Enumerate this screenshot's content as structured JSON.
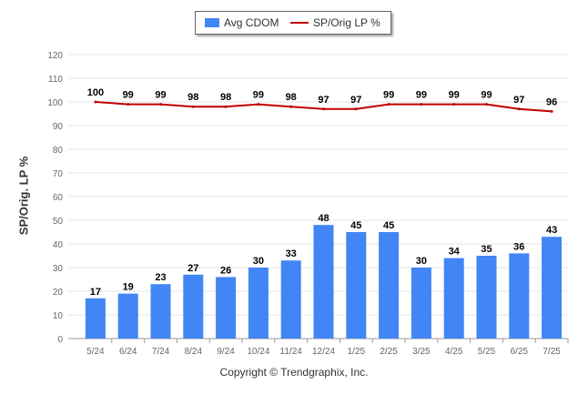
{
  "legend": {
    "bar_label": "Avg CDOM",
    "line_label": "SP/Orig LP %"
  },
  "footer": "Copyright © Trendgraphix, Inc.",
  "colors": {
    "bar": "#4285f4",
    "line": "#c00000",
    "grid": "#e6e6e6",
    "axis": "#999999"
  },
  "chart_data": {
    "type": "bar",
    "title": "",
    "xlabel": "",
    "ylabel": "SP/Orig. LP %",
    "ylim": [
      0,
      120
    ],
    "yticks": [
      0,
      10,
      20,
      30,
      40,
      50,
      60,
      70,
      80,
      90,
      100,
      110,
      120
    ],
    "grid": true,
    "legend_position": "top-center",
    "categories": [
      "5/24",
      "6/24",
      "7/24",
      "8/24",
      "9/24",
      "10/24",
      "11/24",
      "12/24",
      "1/25",
      "2/25",
      "3/25",
      "4/25",
      "5/25",
      "6/25",
      "7/25"
    ],
    "series": [
      {
        "name": "Avg CDOM",
        "type": "bar",
        "values": [
          17,
          19,
          23,
          27,
          26,
          30,
          33,
          48,
          45,
          45,
          30,
          34,
          35,
          36,
          43
        ]
      },
      {
        "name": "SP/Orig LP %",
        "type": "line",
        "values": [
          100,
          99,
          99,
          98,
          98,
          99,
          98,
          97,
          97,
          99,
          99,
          99,
          99,
          97,
          96
        ]
      }
    ]
  }
}
